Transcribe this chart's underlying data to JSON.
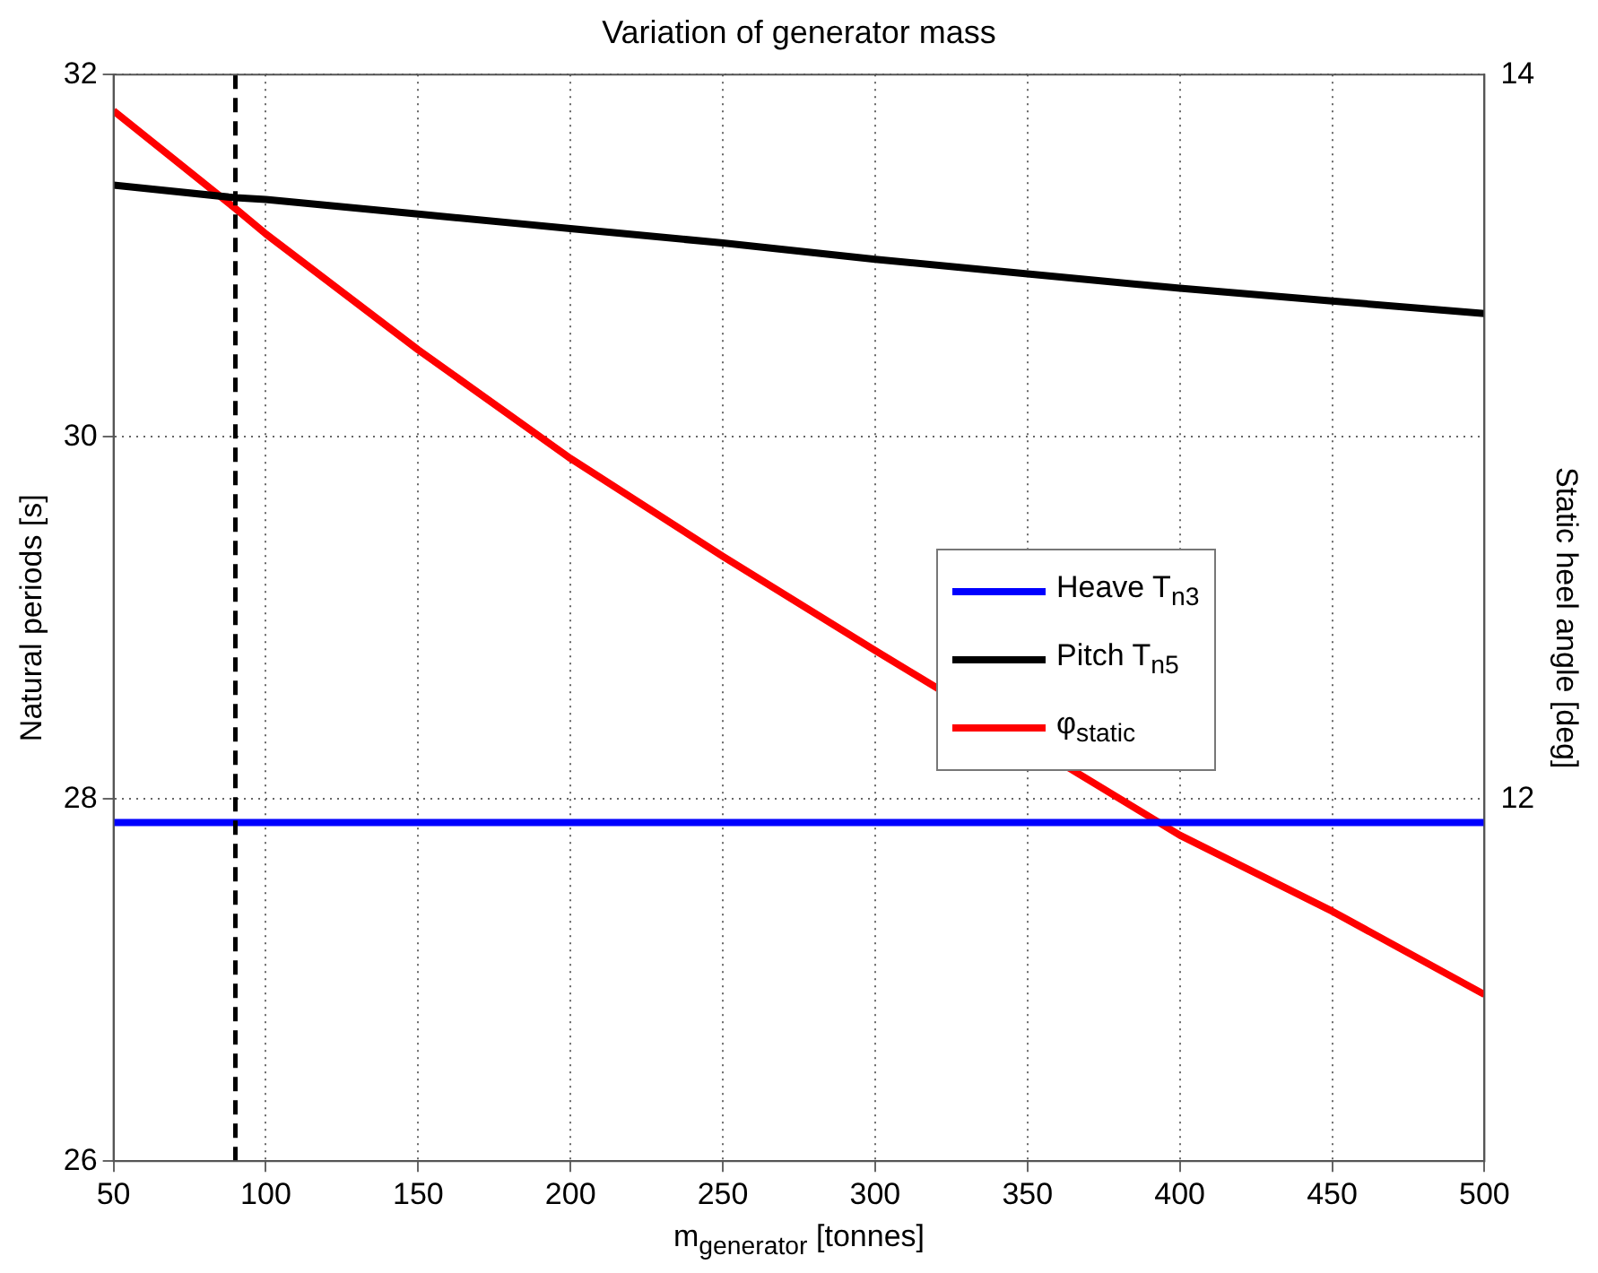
{
  "chart_data": {
    "type": "line",
    "title": "Variation of generator mass",
    "xlabel": "m$_{generator}$ [tonnes]",
    "ylabel": "Natural periods [s]",
    "y2label": "Static heel angle [deg]",
    "x": [
      50,
      90,
      100,
      150,
      200,
      250,
      300,
      350,
      400,
      450,
      500
    ],
    "series": [
      {
        "name": "Heave  T$_{n3}$",
        "color": "#0000ff",
        "values": [
          27.87,
          27.87,
          27.87,
          27.87,
          27.87,
          27.87,
          27.87,
          27.87,
          27.87,
          27.87,
          27.87
        ]
      },
      {
        "name": "Pitch  T$_{n5}$",
        "color": "#000000",
        "values": [
          31.39,
          31.32,
          31.31,
          31.23,
          31.15,
          31.07,
          30.98,
          30.9,
          30.82,
          30.75,
          30.68
        ]
      },
      {
        "name": "φ$_{static}$",
        "color": "#ff0000",
        "axis": "y2",
        "values": [
          13.9,
          13.63,
          13.56,
          13.24,
          12.94,
          12.67,
          12.41,
          null,
          11.9,
          11.69,
          11.46
        ]
      }
    ],
    "xlim": [
      50,
      500
    ],
    "xticks": [
      50,
      100,
      150,
      200,
      250,
      300,
      350,
      400,
      450,
      500
    ],
    "ylim": [
      26,
      32
    ],
    "yticks": [
      26,
      28,
      30,
      32
    ],
    "y2lim": [
      11,
      14
    ],
    "y2ticks": [
      12,
      14
    ],
    "ref_lines": [
      {
        "axis": "x",
        "value": 90,
        "color": "#000000",
        "line_style": "dashed"
      }
    ],
    "grid": true,
    "legend": "right",
    "line_style": "solid",
    "marker": "none"
  }
}
